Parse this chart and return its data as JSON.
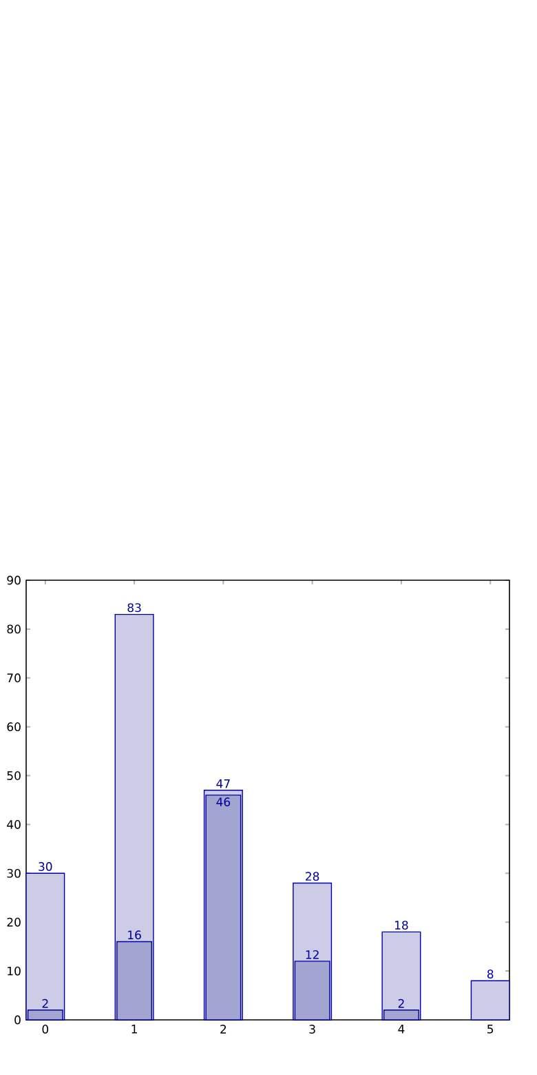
{
  "chart_data": {
    "type": "bar",
    "categories": [
      "0",
      "1",
      "2",
      "3",
      "4",
      "5"
    ],
    "series": [
      {
        "color": "#cccce6",
        "values": [
          30,
          83,
          47,
          28,
          18,
          8
        ]
      },
      {
        "color": "#a3a5d1",
        "values": [
          2,
          16,
          46,
          12,
          2,
          null
        ]
      }
    ],
    "ylim": [
      0,
      90
    ],
    "yticks": [
      0,
      10,
      20,
      30,
      40,
      50,
      60,
      70,
      80,
      90
    ],
    "data_labels": true,
    "grid": false
  }
}
